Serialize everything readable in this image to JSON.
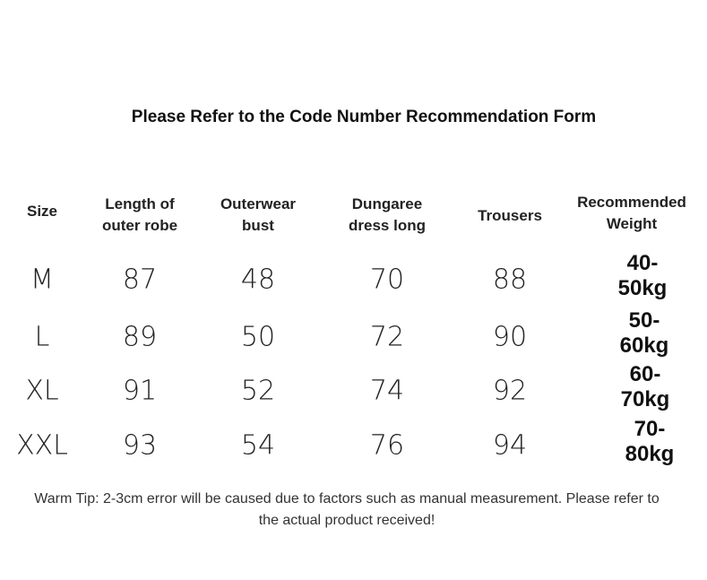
{
  "title": "Please Refer to the Code Number Recommendation Form",
  "table": {
    "headers": [
      "Size",
      "Length of\nouter robe",
      "Outerwear\nbust",
      "Dungaree\ndress long",
      "Trousers",
      "Recommended\nWeight"
    ],
    "rows": [
      [
        "M",
        87,
        48,
        70,
        88,
        "40-50kg"
      ],
      [
        "L",
        89,
        50,
        72,
        90,
        "50-60kg"
      ],
      [
        "XL",
        91,
        52,
        74,
        92,
        "60-70kg"
      ],
      [
        "XXL",
        93,
        54,
        76,
        94,
        "70-80kg"
      ]
    ]
  },
  "tip": "Warm Tip: 2-3cm error will be caused due to factors such as manual measurement. Please refer to the actual product received!"
}
